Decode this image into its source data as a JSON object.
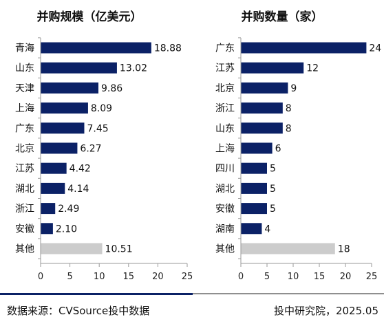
{
  "colors": {
    "bar_main": "#0b2166",
    "bar_other": "#cccccc",
    "axis": "#9a9a9a",
    "footer_accent": "#0b2166"
  },
  "chart_data": [
    {
      "type": "bar",
      "orientation": "horizontal",
      "title": "并购规模（亿美元）",
      "categories": [
        "青海",
        "山东",
        "天津",
        "上海",
        "广东",
        "北京",
        "江苏",
        "湖北",
        "浙江",
        "安徽",
        "其他"
      ],
      "values": [
        18.88,
        13.02,
        9.86,
        8.09,
        7.45,
        6.27,
        4.42,
        4.14,
        2.49,
        2.1,
        10.51
      ],
      "value_labels": [
        "18.88",
        "13.02",
        "9.86",
        "8.09",
        "7.45",
        "6.27",
        "4.42",
        "4.14",
        "2.49",
        "2.10",
        "10.51"
      ],
      "highlight_last_as_other": true,
      "xlim": [
        0,
        25
      ],
      "xticks": [
        0,
        5,
        10,
        15,
        20,
        25
      ],
      "grid": false
    },
    {
      "type": "bar",
      "orientation": "horizontal",
      "title": "并购数量（家）",
      "categories": [
        "广东",
        "江苏",
        "北京",
        "浙江",
        "山东",
        "上海",
        "四川",
        "湖北",
        "安徽",
        "湖南",
        "其他"
      ],
      "values": [
        24,
        12,
        9,
        8,
        8,
        6,
        5,
        5,
        5,
        4,
        18
      ],
      "value_labels": [
        "24",
        "12",
        "9",
        "8",
        "8",
        "6",
        "5",
        "5",
        "5",
        "4",
        "18"
      ],
      "highlight_last_as_other": true,
      "xlim": [
        0,
        25
      ],
      "xticks": [
        0,
        5,
        10,
        15,
        20,
        25
      ],
      "grid": false
    }
  ],
  "footer": {
    "source": "数据来源：CVSource投中数据",
    "credit": "投中研究院，2025.05"
  }
}
